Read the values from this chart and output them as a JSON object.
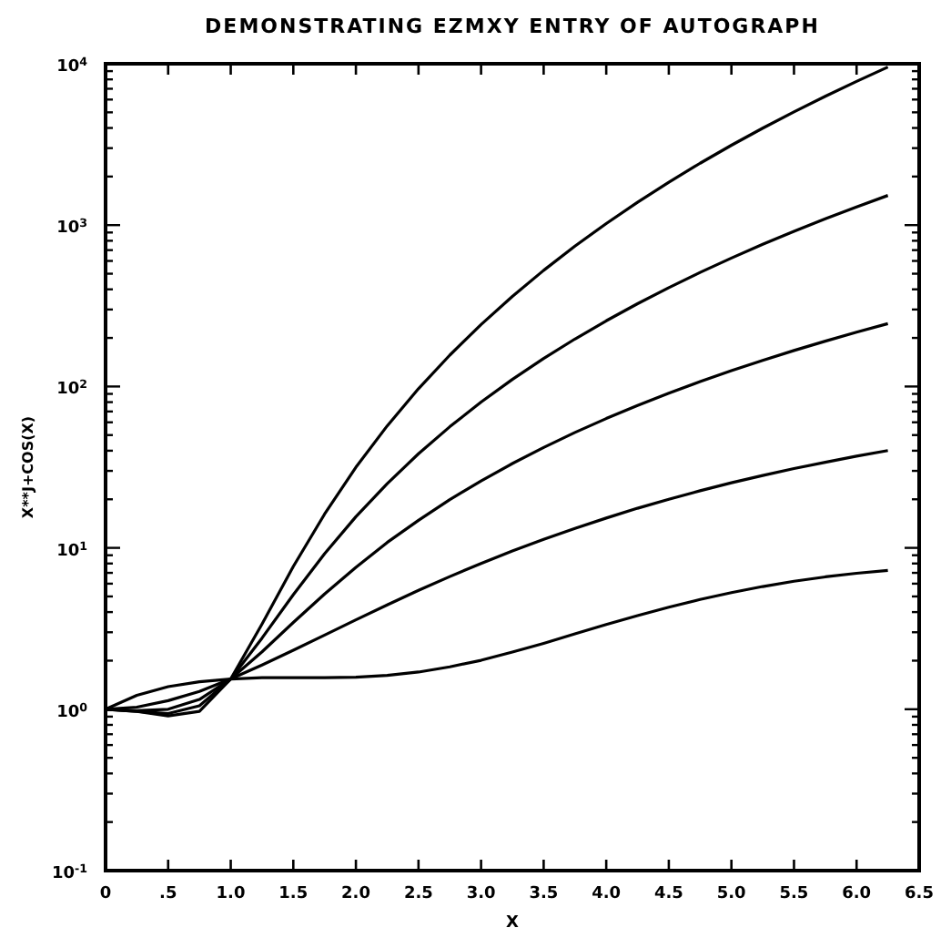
{
  "chart_data": {
    "type": "line",
    "title": "DEMONSTRATING EZMXY ENTRY OF AUTOGRAPH",
    "xlabel": "X",
    "ylabel": "X**J+COS(X)",
    "log": "y",
    "grid": false,
    "marker": "none",
    "line_style": "solid",
    "x": [
      0,
      0.25,
      0.5,
      0.75,
      1,
      1.25,
      1.5,
      1.75,
      2,
      2.25,
      2.5,
      2.75,
      3,
      3.25,
      3.5,
      3.75,
      4,
      4.25,
      4.5,
      4.75,
      5,
      5.25,
      5.5,
      5.75,
      6,
      6.25
    ],
    "series": [
      {
        "color": "#000000",
        "values": [
          1,
          1.22,
          1.38,
          1.48,
          1.54,
          1.57,
          1.57,
          1.57,
          1.58,
          1.62,
          1.7,
          1.83,
          2.01,
          2.26,
          2.56,
          2.93,
          3.35,
          3.8,
          4.29,
          4.79,
          5.28,
          5.76,
          6.21,
          6.61,
          6.96,
          7.25
        ]
      },
      {
        "color": "#000000",
        "values": [
          1,
          1.03,
          1.13,
          1.29,
          1.54,
          1.88,
          2.32,
          2.88,
          3.58,
          4.43,
          5.45,
          6.64,
          8.01,
          9.57,
          11.3,
          13.2,
          15.3,
          17.6,
          20,
          22.6,
          25.3,
          28.1,
          31,
          33.9,
          37,
          40.1
        ]
      },
      {
        "color": "#000000",
        "values": [
          1,
          0.98,
          1,
          1.15,
          1.54,
          2.27,
          3.45,
          5.18,
          7.58,
          10.8,
          14.8,
          19.9,
          26,
          33.3,
          41.9,
          51.9,
          63.3,
          76.3,
          90.9,
          107.2,
          125.3,
          145.2,
          167.1,
          191,
          217,
          245.1
        ]
      },
      {
        "color": "#000000",
        "values": [
          1,
          0.97,
          0.94,
          1.05,
          1.54,
          2.76,
          5.13,
          9.2,
          15.6,
          25,
          38.3,
          56.3,
          80,
          110.6,
          149.1,
          196.9,
          255.3,
          325.8,
          409.9,
          509.1,
          625.3,
          760.2,
          915.8,
          1094,
          1297,
          1527
        ]
      },
      {
        "color": "#000000",
        "values": [
          1,
          0.97,
          0.91,
          0.97,
          1.54,
          3.37,
          7.67,
          16.2,
          31.6,
          57,
          96.9,
          156.4,
          242,
          361.6,
          524.3,
          740.8,
          1023,
          1386,
          1845,
          2418,
          3125,
          3989,
          5034,
          6286,
          7777,
          9537
        ]
      }
    ],
    "xlim": [
      0,
      6.5
    ],
    "xticks": [
      {
        "value": 0,
        "label": "0"
      },
      {
        "value": 0.5,
        "label": ".5"
      },
      {
        "value": 1,
        "label": "1.0"
      },
      {
        "value": 1.5,
        "label": "1.5"
      },
      {
        "value": 2,
        "label": "2.0"
      },
      {
        "value": 2.5,
        "label": "2.5"
      },
      {
        "value": 3,
        "label": "3.0"
      },
      {
        "value": 3.5,
        "label": "3.5"
      },
      {
        "value": 4,
        "label": "4.0"
      },
      {
        "value": 4.5,
        "label": "4.5"
      },
      {
        "value": 5,
        "label": "5.0"
      },
      {
        "value": 5.5,
        "label": "5.5"
      },
      {
        "value": 6,
        "label": "6.0"
      },
      {
        "value": 6.5,
        "label": "6.5"
      }
    ],
    "ylim": [
      0.1,
      10000
    ],
    "yticks": [
      {
        "value": 0.1,
        "label": "10$^{-1}$"
      },
      {
        "value": 0.2,
        "label": null
      },
      {
        "value": 0.3,
        "label": null
      },
      {
        "value": 0.4,
        "label": null
      },
      {
        "value": 0.5,
        "label": null
      },
      {
        "value": 0.6,
        "label": null
      },
      {
        "value": 0.7,
        "label": null
      },
      {
        "value": 0.8,
        "label": null
      },
      {
        "value": 0.9,
        "label": null
      },
      {
        "value": 1,
        "label": "10$^{0}$"
      },
      {
        "value": 2,
        "label": null
      },
      {
        "value": 3,
        "label": null
      },
      {
        "value": 4,
        "label": null
      },
      {
        "value": 5,
        "label": null
      },
      {
        "value": 6,
        "label": null
      },
      {
        "value": 7,
        "label": null
      },
      {
        "value": 8,
        "label": null
      },
      {
        "value": 9,
        "label": null
      },
      {
        "value": 10,
        "label": "10$^{1}$"
      },
      {
        "value": 20,
        "label": null
      },
      {
        "value": 30,
        "label": null
      },
      {
        "value": 40,
        "label": null
      },
      {
        "value": 50,
        "label": null
      },
      {
        "value": 60,
        "label": null
      },
      {
        "value": 70,
        "label": null
      },
      {
        "value": 80,
        "label": null
      },
      {
        "value": 90,
        "label": null
      },
      {
        "value": 100,
        "label": "10$^{2}$"
      },
      {
        "value": 200,
        "label": null
      },
      {
        "value": 300,
        "label": null
      },
      {
        "value": 400,
        "label": null
      },
      {
        "value": 500,
        "label": null
      },
      {
        "value": 600,
        "label": null
      },
      {
        "value": 700,
        "label": null
      },
      {
        "value": 800,
        "label": null
      },
      {
        "value": 900,
        "label": null
      },
      {
        "value": 1000,
        "label": "10$^{3}$"
      },
      {
        "value": 2000,
        "label": null
      },
      {
        "value": 3000,
        "label": null
      },
      {
        "value": 4000,
        "label": null
      },
      {
        "value": 5000,
        "label": null
      },
      {
        "value": 6000,
        "label": null
      },
      {
        "value": 7000,
        "label": null
      },
      {
        "value": 8000,
        "label": null
      },
      {
        "value": 9000,
        "label": null
      },
      {
        "value": 10000,
        "label": "10$^{4}$"
      }
    ]
  }
}
